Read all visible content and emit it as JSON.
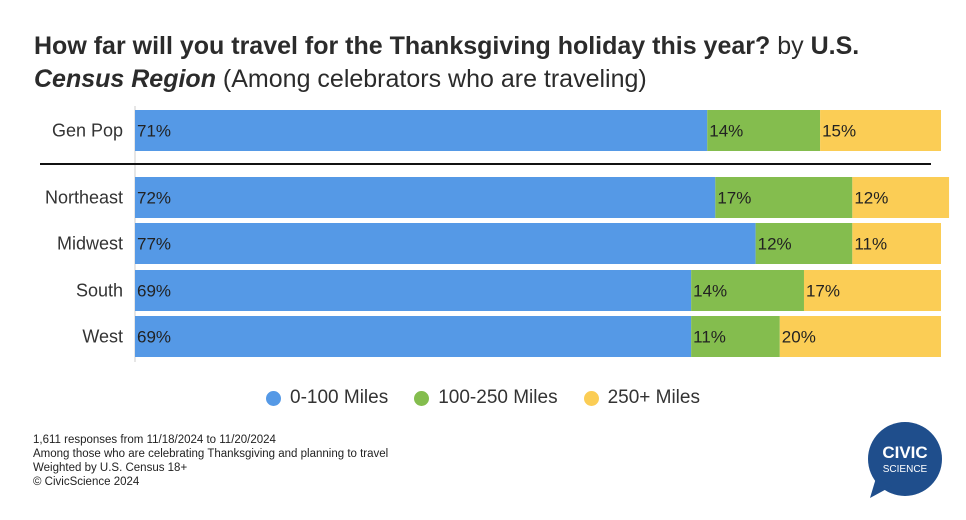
{
  "title": {
    "part1": "How far will you travel for the Thanksgiving holiday this year?",
    "part2": " by ",
    "part3": "U.S.",
    "part4": "Census Region",
    "part5": " (Among celebrators who are traveling)"
  },
  "legend": [
    {
      "label": "0-100 Miles",
      "color": "#5599e6"
    },
    {
      "label": "100-250 Miles",
      "color": "#84bd4e"
    },
    {
      "label": "250+ Miles",
      "color": "#fbcd55"
    }
  ],
  "footnotes": {
    "line1": "1,611 responses from 11/18/2024 to 11/20/2024",
    "line2": "Among those who are celebrating Thanksgiving and planning to travel",
    "line3": "Weighted by U.S. Census 18+",
    "line4": "© CivicScience 2024"
  },
  "logo": {
    "line1": "CIVIC",
    "line2": "SCIENCE",
    "color": "#1f4e8c"
  },
  "chart_data": {
    "type": "bar",
    "orientation": "horizontal",
    "stacked": true,
    "categories": [
      "Gen Pop",
      "Northeast",
      "Midwest",
      "South",
      "West"
    ],
    "series": [
      {
        "name": "0-100 Miles",
        "color": "#5599e6",
        "values": [
          71,
          72,
          77,
          69,
          69
        ],
        "labels": [
          "71%",
          "72%",
          "77%",
          "69%",
          "69%"
        ]
      },
      {
        "name": "100-250 Miles",
        "color": "#84bd4e",
        "values": [
          14,
          17,
          12,
          14,
          11
        ],
        "labels": [
          "14%",
          "17%",
          "12%",
          "14%",
          "11%"
        ]
      },
      {
        "name": "250+ Miles",
        "color": "#fbcd55",
        "values": [
          15,
          12,
          11,
          17,
          20
        ],
        "labels": [
          "15%",
          "12%",
          "11%",
          "17%",
          "20%"
        ]
      }
    ],
    "xlim": [
      0,
      100
    ],
    "grid": false,
    "legend_position": "bottom"
  }
}
